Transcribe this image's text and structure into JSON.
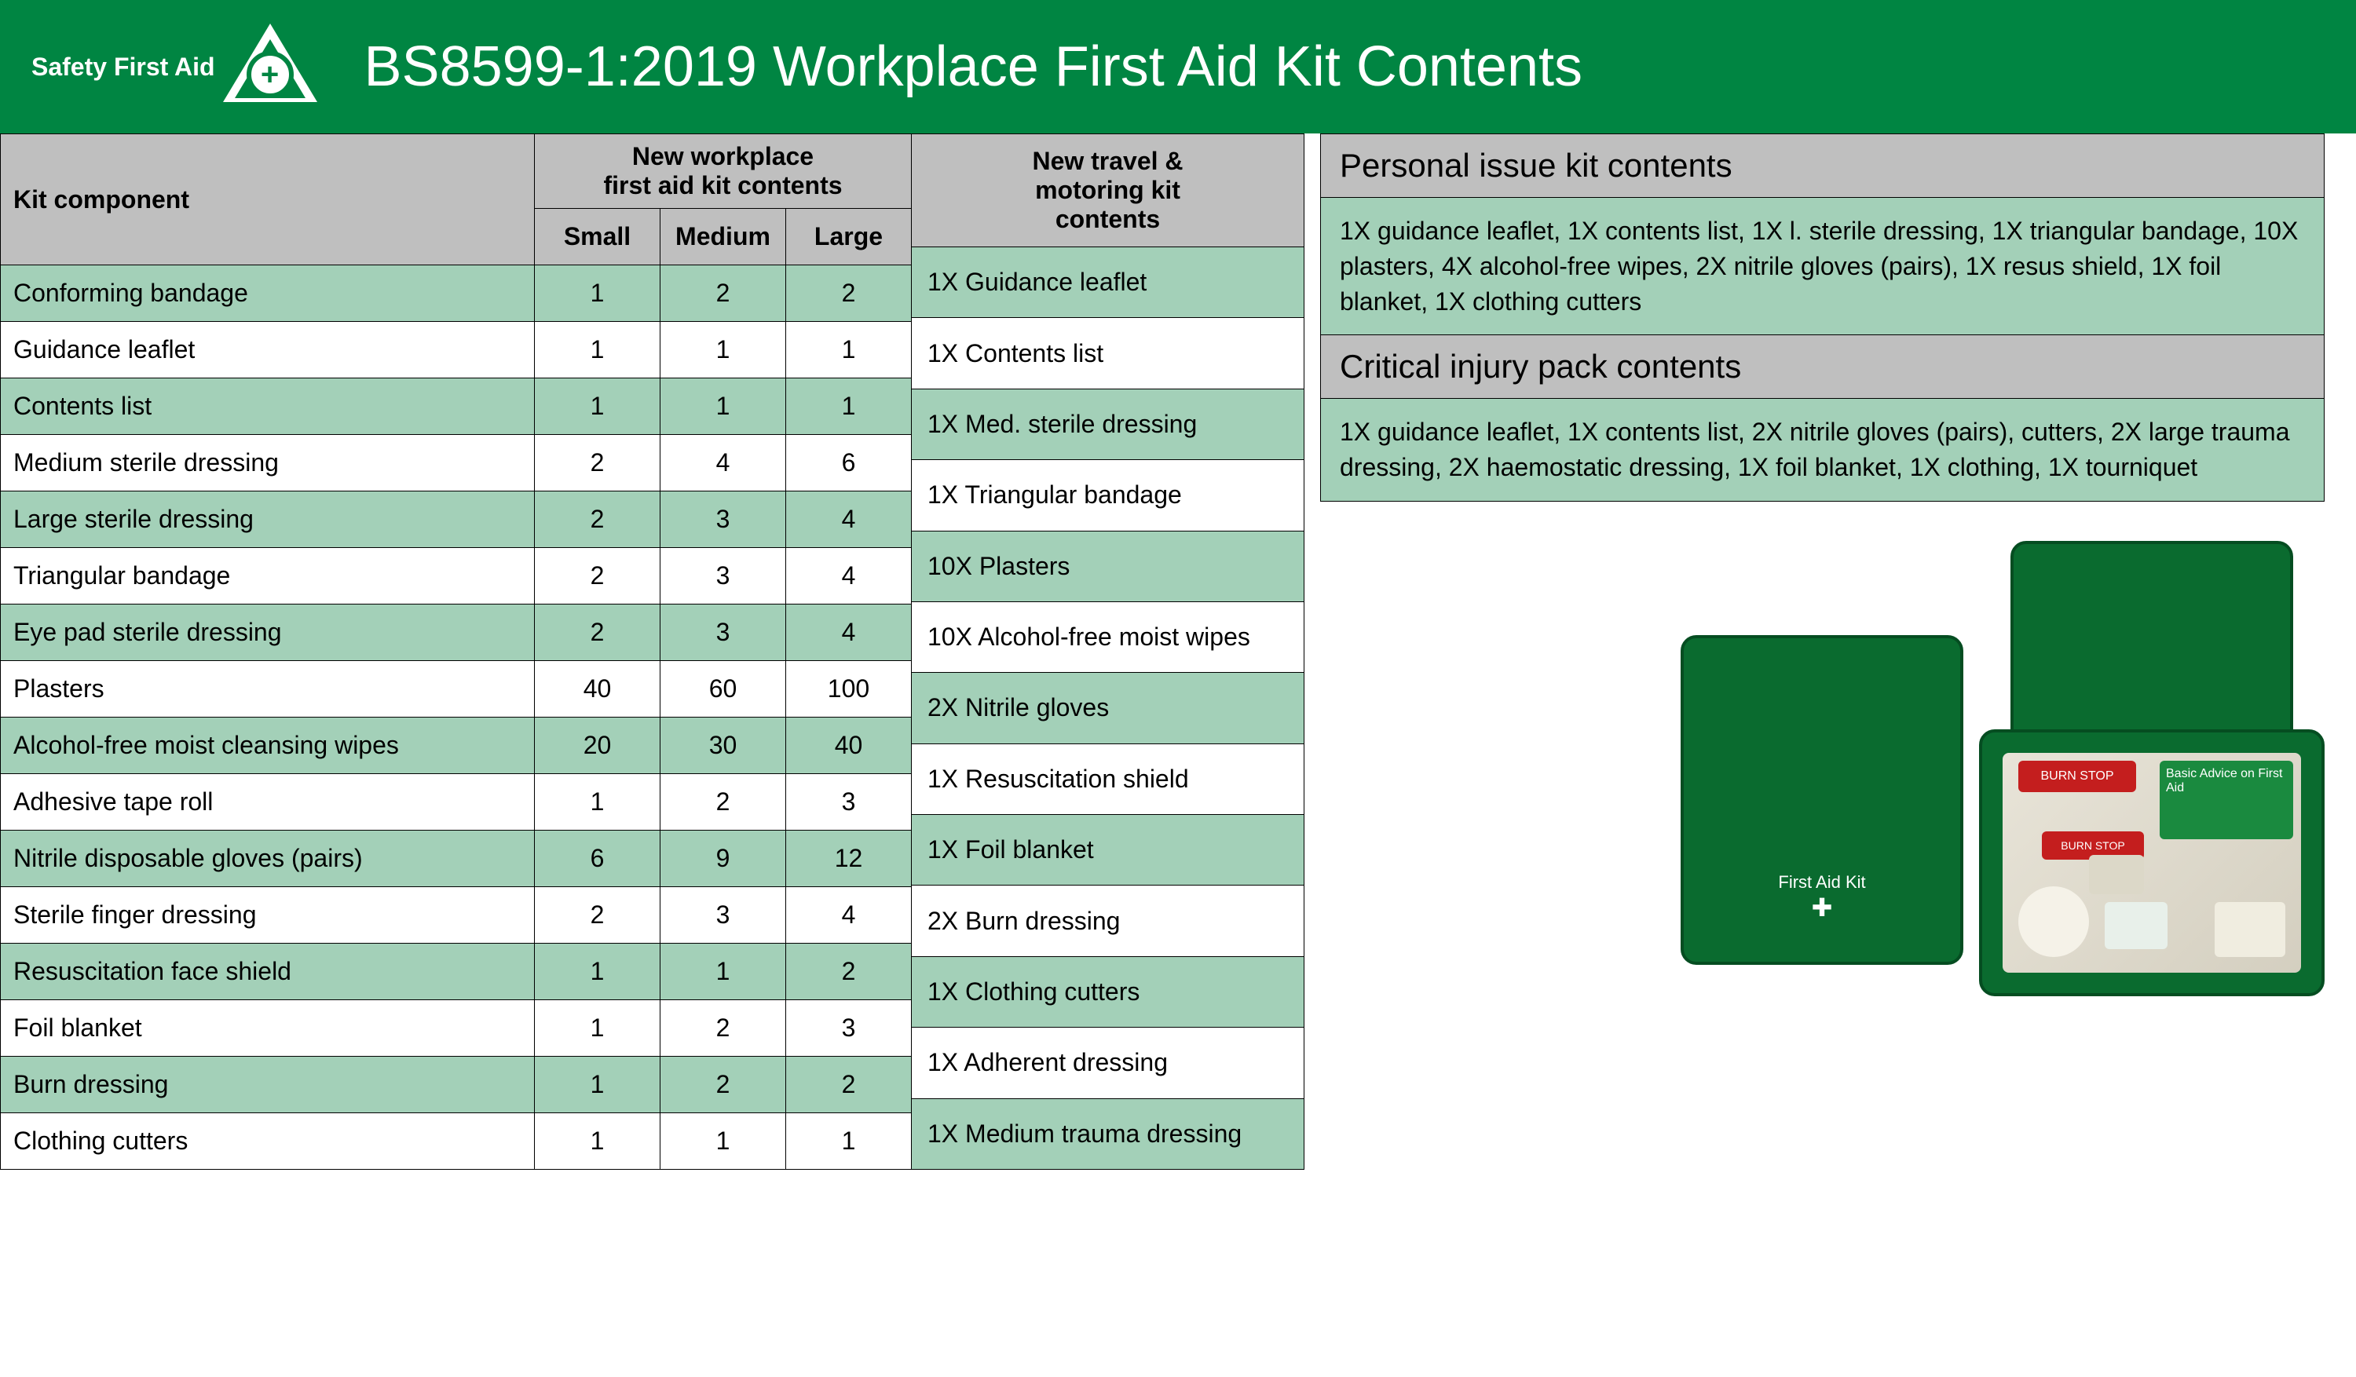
{
  "colors": {
    "brand_green": "#008542",
    "header_grey": "#bfbfbf",
    "row_alt_green": "#a3d0b8",
    "row_white": "#ffffff",
    "border": "#000000",
    "text": "#000000",
    "title_text": "#ffffff"
  },
  "typography": {
    "title_fontsize": 72,
    "header_fontsize": 32,
    "body_fontsize": 32,
    "info_title_fontsize": 42
  },
  "logo": {
    "text": "Safety First Aid"
  },
  "title": "BS8599-1:2019 Workplace First Aid Kit Contents",
  "main_table": {
    "header_component": "Kit component",
    "header_group": "New workplace\nfirst aid kit contents",
    "subheaders": [
      "Small",
      "Medium",
      "Large"
    ],
    "rows": [
      {
        "name": "Conforming bandage",
        "small": "1",
        "medium": "2",
        "large": "2"
      },
      {
        "name": "Guidance leaflet",
        "small": "1",
        "medium": "1",
        "large": "1"
      },
      {
        "name": "Contents list",
        "small": "1",
        "medium": "1",
        "large": "1"
      },
      {
        "name": "Medium sterile dressing",
        "small": "2",
        "medium": "4",
        "large": "6"
      },
      {
        "name": "Large sterile dressing",
        "small": "2",
        "medium": "3",
        "large": "4"
      },
      {
        "name": "Triangular bandage",
        "small": "2",
        "medium": "3",
        "large": "4"
      },
      {
        "name": "Eye pad sterile dressing",
        "small": "2",
        "medium": "3",
        "large": "4"
      },
      {
        "name": "Plasters",
        "small": "40",
        "medium": "60",
        "large": "100"
      },
      {
        "name": "Alcohol-free moist cleansing wipes",
        "small": "20",
        "medium": "30",
        "large": "40"
      },
      {
        "name": "Adhesive tape roll",
        "small": "1",
        "medium": "2",
        "large": "3"
      },
      {
        "name": "Nitrile disposable gloves (pairs)",
        "small": "6",
        "medium": "9",
        "large": "12"
      },
      {
        "name": "Sterile finger dressing",
        "small": "2",
        "medium": "3",
        "large": "4"
      },
      {
        "name": "Resuscitation face shield",
        "small": "1",
        "medium": "1",
        "large": "2"
      },
      {
        "name": "Foil blanket",
        "small": "1",
        "medium": "2",
        "large": "3"
      },
      {
        "name": "Burn dressing",
        "small": "1",
        "medium": "2",
        "large": "2"
      },
      {
        "name": "Clothing cutters",
        "small": "1",
        "medium": "1",
        "large": "1"
      }
    ]
  },
  "travel_table": {
    "header": "New travel &\nmotoring kit\ncontents",
    "rows": [
      "1X  Guidance leaflet",
      "1X  Contents list",
      "1X  Med. sterile dressing",
      "1X  Triangular bandage",
      "10X  Plasters",
      "10X Alcohol-free moist wipes",
      "2X  Nitrile gloves",
      "1X  Resuscitation shield",
      "1X  Foil blanket",
      "2X  Burn dressing",
      "1X  Clothing cutters",
      "1X  Adherent dressing",
      "1X  Medium trauma dressing"
    ]
  },
  "personal_box": {
    "title": "Personal issue kit contents",
    "body": "1X guidance leaflet, 1X contents list, 1X l. sterile dressing, 1X triangular bandage, 10X plasters, 4X alcohol-free wipes, 2X nitrile gloves (pairs), 1X resus shield, 1X foil blanket, 1X clothing cutters"
  },
  "critical_box": {
    "title": "Critical injury pack contents",
    "body": "1X guidance leaflet, 1X contents list, 2X nitrile gloves (pairs), cutters, 2X large trauma dressing, 2X haemostatic dressing, 1X foil blanket, 1X clothing, 1X tourniquet"
  },
  "kit_image": {
    "closed_label": "First Aid Kit",
    "advice_label": "Basic Advice on First Aid",
    "burn_label": "BURN STOP"
  }
}
